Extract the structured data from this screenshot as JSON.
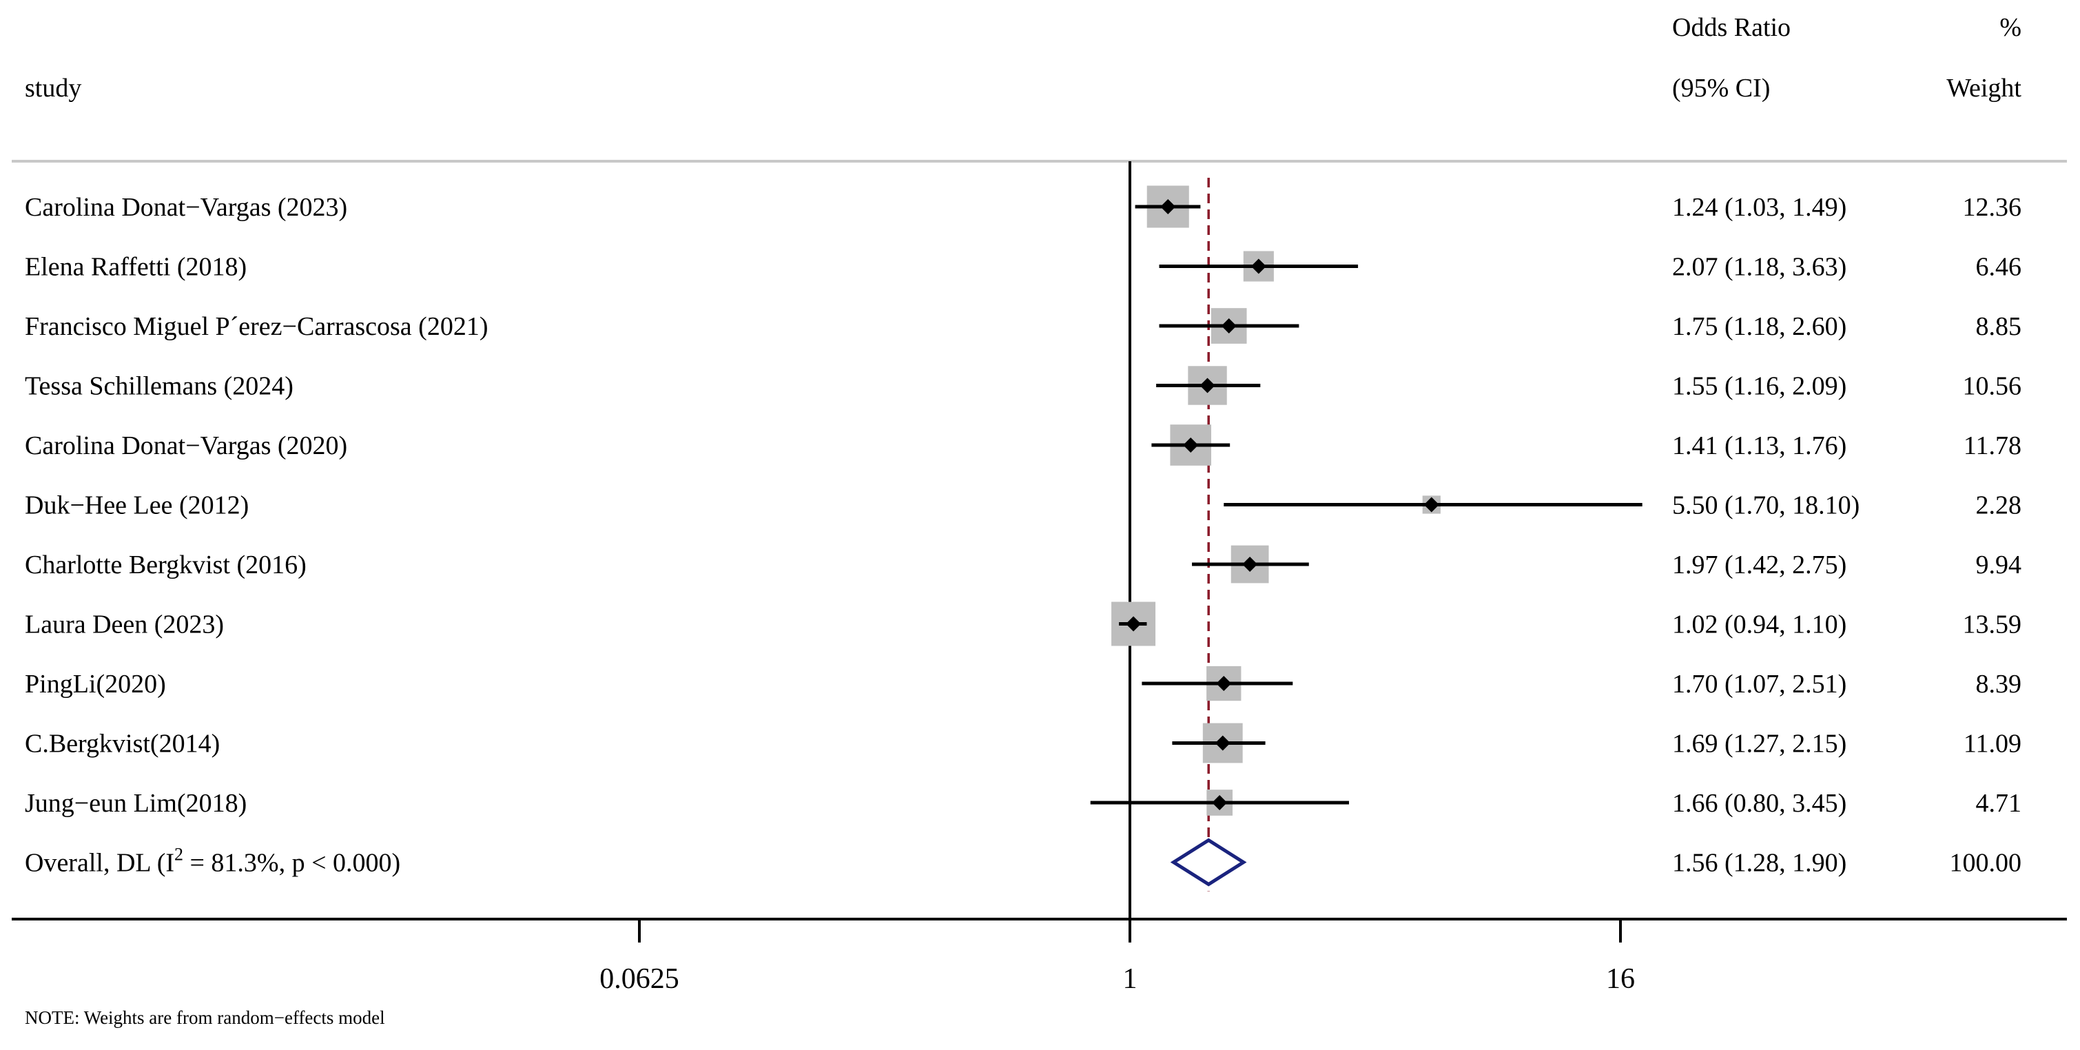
{
  "headers": {
    "study": "study",
    "or_line1": "Odds Ratio",
    "or_line2": "(95% CI)",
    "weight_line1": "%",
    "weight_line2": "Weight"
  },
  "chart_data": {
    "type": "forest",
    "x_scale": "log2",
    "xlim": [
      0.0625,
      16
    ],
    "null_value": 1,
    "x_ticks": [
      {
        "value": 0.0625,
        "label": "0.0625"
      },
      {
        "value": 1,
        "label": "1"
      },
      {
        "value": 16,
        "label": "16"
      }
    ],
    "studies": [
      {
        "label": "Carolina Donat−Vargas (2023)",
        "or": 1.24,
        "lo": 1.03,
        "hi": 1.49,
        "ci_text": "1.24 (1.03, 1.49)",
        "weight": 12.36,
        "weight_text": "12.36"
      },
      {
        "label": "Elena Raffetti (2018)",
        "or": 2.07,
        "lo": 1.18,
        "hi": 3.63,
        "ci_text": "2.07 (1.18, 3.63)",
        "weight": 6.46,
        "weight_text": "6.46"
      },
      {
        "label": "Francisco Miguel P´erez−Carrascosa (2021)",
        "or": 1.75,
        "lo": 1.18,
        "hi": 2.6,
        "ci_text": "1.75 (1.18, 2.60)",
        "weight": 8.85,
        "weight_text": "8.85"
      },
      {
        "label": "Tessa Schillemans (2024)",
        "or": 1.55,
        "lo": 1.16,
        "hi": 2.09,
        "ci_text": "1.55 (1.16, 2.09)",
        "weight": 10.56,
        "weight_text": "10.56"
      },
      {
        "label": "Carolina Donat−Vargas (2020)",
        "or": 1.41,
        "lo": 1.13,
        "hi": 1.76,
        "ci_text": "1.41 (1.13, 1.76)",
        "weight": 11.78,
        "weight_text": "11.78"
      },
      {
        "label": "Duk−Hee Lee (2012)",
        "or": 5.5,
        "lo": 1.7,
        "hi": 18.1,
        "ci_text": "5.50 (1.70, 18.10)",
        "weight": 2.28,
        "weight_text": "2.28"
      },
      {
        "label": "Charlotte Bergkvist (2016)",
        "or": 1.97,
        "lo": 1.42,
        "hi": 2.75,
        "ci_text": "1.97 (1.42, 2.75)",
        "weight": 9.94,
        "weight_text": "9.94"
      },
      {
        "label": "Laura Deen (2023)",
        "or": 1.02,
        "lo": 0.94,
        "hi": 1.1,
        "ci_text": "1.02 (0.94, 1.10)",
        "weight": 13.59,
        "weight_text": "13.59"
      },
      {
        "label": "PingLi(2020)",
        "or": 1.7,
        "lo": 1.07,
        "hi": 2.51,
        "ci_text": "1.70 (1.07, 2.51)",
        "weight": 8.39,
        "weight_text": "8.39"
      },
      {
        "label": "C.Bergkvist(2014)",
        "or": 1.69,
        "lo": 1.27,
        "hi": 2.15,
        "ci_text": "1.69 (1.27, 2.15)",
        "weight": 11.09,
        "weight_text": "11.09"
      },
      {
        "label": "Jung−eun Lim(2018)",
        "or": 1.66,
        "lo": 0.8,
        "hi": 3.45,
        "ci_text": "1.66 (0.80, 3.45)",
        "weight": 4.71,
        "weight_text": "4.71"
      }
    ],
    "overall": {
      "label_prefix": "Overall, DL (I",
      "label_sup": "2",
      "label_suffix": " = 81.3%, p < 0.000)",
      "or": 1.56,
      "lo": 1.28,
      "hi": 1.9,
      "ci_text": "1.56 (1.28, 1.90)",
      "weight_text": "100.00"
    },
    "colors": {
      "box": "#bdbdbd",
      "ci_line": "#000000",
      "point": "#000000",
      "overall_diamond": "#1a237e",
      "overall_line": "#8b1a2a",
      "axis": "#000000",
      "separator": "#c8c8c8"
    }
  },
  "note": "NOTE: Weights are from random−effects model"
}
